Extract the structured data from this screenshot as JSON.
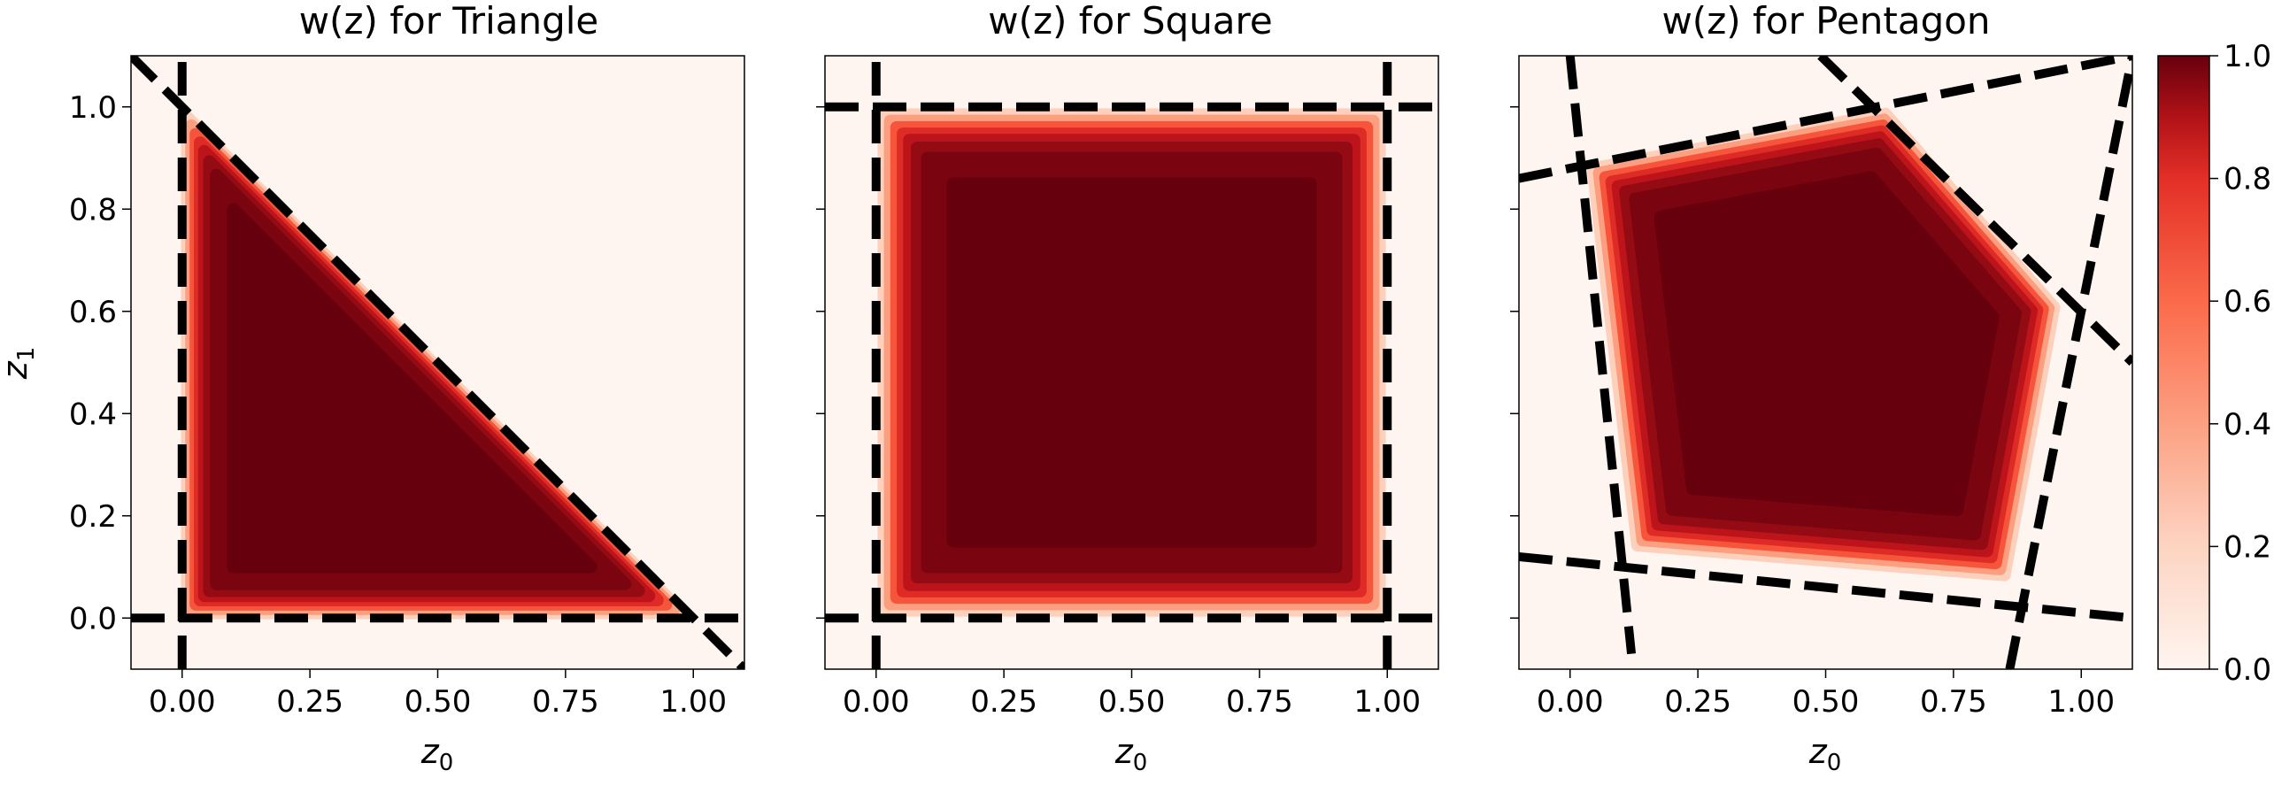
{
  "chart_data": [
    {
      "type": "heatmap",
      "title": "w(z) for Triangle",
      "xlabel": "z0",
      "ylabel": "z1",
      "xlim": [
        -0.1,
        1.1
      ],
      "ylim": [
        -0.1,
        1.1
      ],
      "xticks": [
        "0.00",
        "0.25",
        "0.50",
        "0.75",
        "1.00"
      ],
      "yticks": [
        "0.0",
        "0.2",
        "0.4",
        "0.6",
        "0.8",
        "1.0"
      ],
      "colormap": "Reds",
      "vertices": [
        [
          0,
          0
        ],
        [
          1,
          0
        ],
        [
          0,
          1
        ]
      ],
      "boundary_lines": [
        {
          "p1": [
            0,
            -0.1
          ],
          "p2": [
            0,
            1.1
          ]
        },
        {
          "p1": [
            -0.1,
            0
          ],
          "p2": [
            1.1,
            0
          ]
        },
        {
          "p1": [
            -0.1,
            1.1
          ],
          "p2": [
            1.1,
            -0.1
          ]
        }
      ]
    },
    {
      "type": "heatmap",
      "title": "w(z) for Square",
      "xlabel": "z0",
      "xlim": [
        -0.1,
        1.1
      ],
      "ylim": [
        -0.1,
        1.1
      ],
      "xticks": [
        "0.00",
        "0.25",
        "0.50",
        "0.75",
        "1.00"
      ],
      "colormap": "Reds",
      "vertices": [
        [
          0,
          0
        ],
        [
          1,
          0
        ],
        [
          1,
          1
        ],
        [
          0,
          1
        ]
      ],
      "boundary_lines": [
        {
          "p1": [
            0,
            -0.1
          ],
          "p2": [
            0,
            1.1
          ]
        },
        {
          "p1": [
            1,
            -0.1
          ],
          "p2": [
            1,
            1.1
          ]
        },
        {
          "p1": [
            -0.1,
            0
          ],
          "p2": [
            1.1,
            0
          ]
        },
        {
          "p1": [
            -0.1,
            1
          ],
          "p2": [
            1.1,
            1
          ]
        }
      ]
    },
    {
      "type": "heatmap",
      "title": "w(z) for Pentagon",
      "xlabel": "z0",
      "xlim": [
        -0.1,
        1.1
      ],
      "ylim": [
        -0.1,
        1.1
      ],
      "xticks": [
        "0.00",
        "0.25",
        "0.50",
        "0.75",
        "1.00"
      ],
      "colormap": "Reds",
      "vertices": [
        [
          0.12,
          0.13
        ],
        [
          0.86,
          0.07
        ],
        [
          0.96,
          0.61
        ],
        [
          0.62,
          1.0
        ],
        [
          0.03,
          0.89
        ]
      ],
      "boundary_lines": [
        {
          "p1": [
            0.0,
            1.1
          ],
          "p2": [
            0.12,
            -0.07
          ]
        },
        {
          "p1": [
            -0.1,
            0.12
          ],
          "p2": [
            1.1,
            0.0
          ]
        },
        {
          "p1": [
            0.86,
            -0.1
          ],
          "p2": [
            1.1,
            1.1
          ]
        },
        {
          "p1": [
            0.49,
            1.1
          ],
          "p2": [
            1.1,
            0.5
          ]
        },
        {
          "p1": [
            -0.1,
            0.86
          ],
          "p2": [
            1.1,
            1.1
          ]
        }
      ]
    }
  ],
  "colorbar": {
    "ticks": [
      "0.0",
      "0.2",
      "0.4",
      "0.6",
      "0.8",
      "1.0"
    ],
    "range": [
      0.0,
      1.0
    ],
    "colormap": "Reds"
  },
  "colors": {
    "background": "#fff5f0",
    "low": "#fcbba1",
    "mid": "#ef3b2c",
    "high": "#67000d",
    "boundary": "#000000"
  }
}
